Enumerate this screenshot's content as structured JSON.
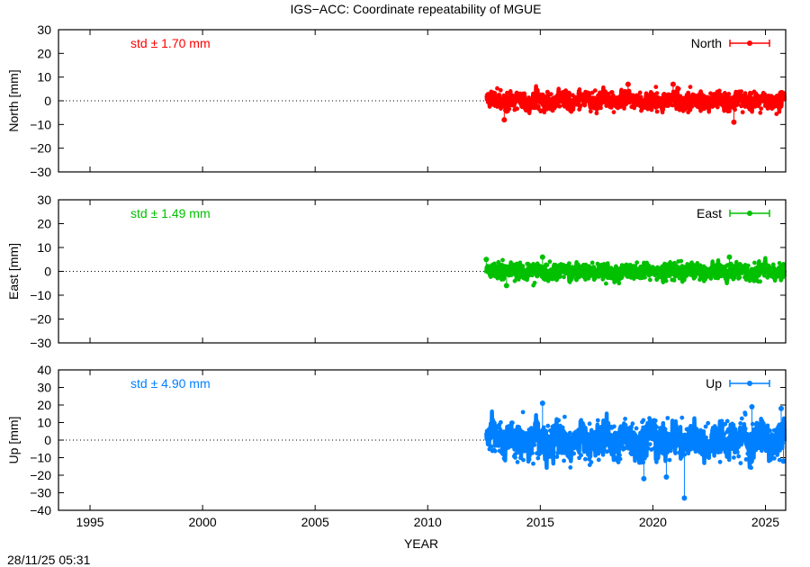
{
  "title": "IGS−ACC: Coordinate repeatability of MGUE",
  "timestamp": "28/11/25 05:31",
  "chart_data": {
    "type": "scatter",
    "title": "IGS−ACC: Coordinate repeatability of MGUE",
    "xlabel": "YEAR",
    "xlim": [
      1993.6,
      2025.9
    ],
    "x_ticks": [
      1995,
      2000,
      2005,
      2010,
      2015,
      2020,
      2025
    ],
    "data_span": [
      2012.6,
      2025.85
    ],
    "panels": [
      {
        "name": "North",
        "ylabel": "North [mm]",
        "ylim": [
          -30,
          30
        ],
        "y_ticks": [
          30,
          20,
          10,
          0,
          -10,
          -20,
          -30
        ],
        "color": "#ff0000",
        "std_label": "std ± 1.70 mm",
        "std": 1.7,
        "legend": "North",
        "legend_position": "top-right",
        "zero_line": true,
        "outliers": [
          {
            "x": 2013.4,
            "y": -8
          },
          {
            "x": 2018.9,
            "y": 7
          },
          {
            "x": 2020.9,
            "y": 7
          },
          {
            "x": 2023.6,
            "y": -9
          }
        ]
      },
      {
        "name": "East",
        "ylabel": "East [mm]",
        "ylim": [
          -30,
          30
        ],
        "y_ticks": [
          30,
          20,
          10,
          0,
          -10,
          -20,
          -30
        ],
        "color": "#00c000",
        "std_label": "std ± 1.49 mm",
        "std": 1.49,
        "legend": "East",
        "legend_position": "top-right",
        "zero_line": true,
        "outliers": [
          {
            "x": 2012.6,
            "y": 5
          },
          {
            "x": 2013.5,
            "y": -6
          },
          {
            "x": 2015.1,
            "y": 6
          },
          {
            "x": 2023.4,
            "y": 6
          }
        ]
      },
      {
        "name": "Up",
        "ylabel": "Up [mm]",
        "ylim": [
          -40,
          40
        ],
        "y_ticks": [
          40,
          30,
          20,
          10,
          0,
          -10,
          -20,
          -30,
          -40
        ],
        "color": "#0080ff",
        "std_label": "std ± 4.90 mm",
        "std": 4.9,
        "legend": "Up",
        "legend_position": "top-right",
        "zero_line": true,
        "outliers": [
          {
            "x": 2015.1,
            "y": 21
          },
          {
            "x": 2019.6,
            "y": -22
          },
          {
            "x": 2020.6,
            "y": -21
          },
          {
            "x": 2021.4,
            "y": -33
          },
          {
            "x": 2024.4,
            "y": 19
          },
          {
            "x": 2025.7,
            "y": 18
          },
          {
            "x": 2025.8,
            "y": -12
          }
        ]
      }
    ]
  }
}
